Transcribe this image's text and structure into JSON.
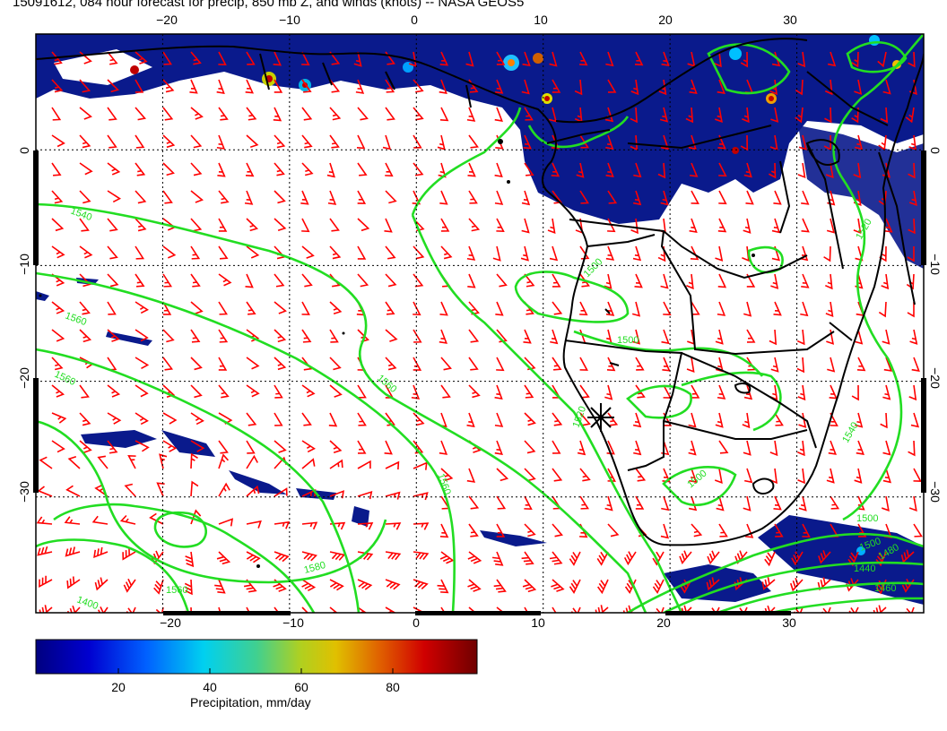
{
  "title": "15091612, 084 hour forecast for precip, 850 mb Z, and winds (knots) -- NASA GEOS5",
  "map": {
    "lon_range": [
      -30,
      40
    ],
    "lat_range": [
      -40,
      10
    ],
    "lon_ticks": [
      "−20",
      "−10",
      "0",
      "10",
      "20",
      "30"
    ],
    "lat_ticks": [
      "0",
      "−10",
      "−20",
      "−30"
    ],
    "grid_lines": true,
    "contour_labels": [
      "1540",
      "1560",
      "1560",
      "1560",
      "1580",
      "1560",
      "1560",
      "1500",
      "1500",
      "1520",
      "1500",
      "1540",
      "1500",
      "1520",
      "1500",
      "1440",
      "1460",
      "1480",
      "1400"
    ],
    "marker": "asterisk at approx 15E, 24S"
  },
  "colors": {
    "wind_barbs": "#ff0000",
    "contours": "#22dd22",
    "coastline": "#000000",
    "precip_base": "#0a1a8c"
  },
  "colorbar": {
    "ticks": [
      "20",
      "40",
      "60",
      "80"
    ],
    "label": "Precipitation, mm/day",
    "min": 0,
    "max": 100
  }
}
